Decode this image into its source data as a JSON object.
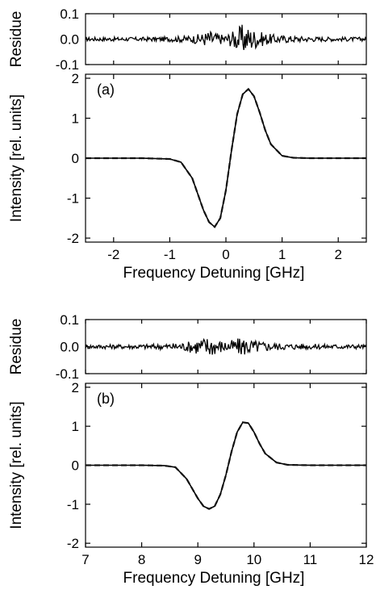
{
  "chart_data": [
    {
      "id": "a",
      "type": "line",
      "panel_label": "(a)",
      "xlabel": "Frequency Detuning [GHz]",
      "xlim": [
        -2.5,
        2.5
      ],
      "xticks": [
        "-2",
        "-1",
        "0",
        "1",
        "2"
      ],
      "residue": {
        "ylabel": "Residue",
        "ylim": [
          -0.1,
          0.1
        ],
        "yticks": [
          "0.1",
          "0.0",
          "-0.1"
        ]
      },
      "main": {
        "ylabel": "Intensity [rel. units]",
        "ylim": [
          -2.1,
          2.1
        ],
        "yticks": [
          "2",
          "1",
          "0",
          "-1",
          "-2"
        ]
      },
      "series": [
        {
          "style": "solid",
          "x": [
            -2.5,
            -1.5,
            -1.0,
            -0.8,
            -0.6,
            -0.4,
            -0.3,
            -0.2,
            -0.1,
            0.0,
            0.1,
            0.2,
            0.3,
            0.4,
            0.5,
            0.6,
            0.7,
            0.8,
            1.0,
            1.2,
            1.5,
            2.5
          ],
          "y": [
            0.0,
            0.0,
            -0.02,
            -0.1,
            -0.5,
            -1.3,
            -1.6,
            -1.72,
            -1.5,
            -0.8,
            0.2,
            1.1,
            1.6,
            1.73,
            1.55,
            1.15,
            0.7,
            0.35,
            0.06,
            0.01,
            0.0,
            0.0
          ]
        },
        {
          "style": "dashed",
          "x": [
            -2.5,
            -1.5,
            -1.0,
            -0.8,
            -0.6,
            -0.4,
            -0.3,
            -0.2,
            -0.1,
            0.0,
            0.1,
            0.2,
            0.3,
            0.4,
            0.5,
            0.6,
            0.7,
            0.8,
            1.0,
            1.2,
            1.5,
            2.5
          ],
          "y": [
            0.0,
            0.0,
            -0.02,
            -0.1,
            -0.5,
            -1.3,
            -1.6,
            -1.72,
            -1.5,
            -0.8,
            0.2,
            1.1,
            1.6,
            1.73,
            1.55,
            1.15,
            0.7,
            0.35,
            0.06,
            0.01,
            0.0,
            0.0
          ]
        }
      ],
      "residue_series": {
        "x": [
          -2.5,
          -2.0,
          -1.5,
          -1.0,
          -0.6,
          -0.4,
          -0.3,
          -0.2,
          -0.1,
          0.0,
          0.1,
          0.2,
          0.3,
          0.4,
          0.5,
          0.6,
          0.8,
          1.0,
          1.5,
          2.0,
          2.5
        ],
        "amplitude": [
          0.008,
          0.008,
          0.008,
          0.01,
          0.015,
          0.025,
          0.035,
          0.03,
          0.02,
          0.02,
          0.03,
          0.045,
          0.06,
          0.05,
          0.04,
          0.03,
          0.02,
          0.015,
          0.01,
          0.008,
          0.008
        ]
      }
    },
    {
      "id": "b",
      "type": "line",
      "panel_label": "(b)",
      "xlabel": "Frequency Detuning [GHz]",
      "xlim": [
        7,
        12
      ],
      "xticks": [
        "7",
        "8",
        "9",
        "10",
        "11",
        "12"
      ],
      "residue": {
        "ylabel": "Residue",
        "ylim": [
          -0.1,
          0.1
        ],
        "yticks": [
          "0.1",
          "0.0",
          "-0.1"
        ]
      },
      "main": {
        "ylabel": "Intensity [rel. units]",
        "ylim": [
          -2.1,
          2.1
        ],
        "yticks": [
          "2",
          "1",
          "0",
          "-1",
          "-2"
        ]
      },
      "series": [
        {
          "style": "solid",
          "x": [
            7.0,
            8.0,
            8.4,
            8.6,
            8.8,
            9.0,
            9.1,
            9.2,
            9.3,
            9.4,
            9.5,
            9.6,
            9.7,
            9.8,
            9.9,
            10.0,
            10.1,
            10.2,
            10.4,
            10.6,
            11.0,
            12.0
          ],
          "y": [
            0.0,
            0.0,
            -0.01,
            -0.05,
            -0.35,
            -0.85,
            -1.05,
            -1.12,
            -1.05,
            -0.75,
            -0.25,
            0.35,
            0.85,
            1.1,
            1.08,
            0.85,
            0.55,
            0.3,
            0.07,
            0.01,
            0.0,
            0.0
          ]
        },
        {
          "style": "dashed",
          "x": [
            7.0,
            8.0,
            8.4,
            8.6,
            8.8,
            9.0,
            9.1,
            9.2,
            9.3,
            9.4,
            9.5,
            9.6,
            9.7,
            9.8,
            9.9,
            10.0,
            10.1,
            10.2,
            10.4,
            10.6,
            11.0,
            12.0
          ],
          "y": [
            0.0,
            0.0,
            -0.01,
            -0.05,
            -0.35,
            -0.85,
            -1.05,
            -1.12,
            -1.05,
            -0.75,
            -0.25,
            0.35,
            0.85,
            1.1,
            1.08,
            0.85,
            0.55,
            0.3,
            0.07,
            0.01,
            0.0,
            0.0
          ]
        }
      ],
      "residue_series": {
        "x": [
          7.0,
          7.5,
          8.0,
          8.5,
          8.8,
          9.0,
          9.2,
          9.3,
          9.5,
          9.7,
          9.8,
          10.0,
          10.2,
          10.5,
          11.0,
          11.5,
          12.0
        ],
        "amplitude": [
          0.008,
          0.008,
          0.009,
          0.012,
          0.018,
          0.03,
          0.04,
          0.03,
          0.02,
          0.03,
          0.035,
          0.025,
          0.018,
          0.012,
          0.01,
          0.009,
          0.008
        ]
      }
    }
  ]
}
